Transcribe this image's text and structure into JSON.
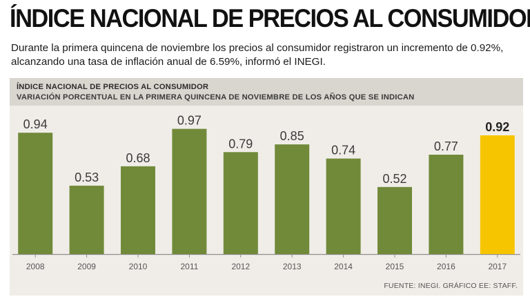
{
  "header": {
    "title": "ÍNDICE NACIONAL DE PRECIOS AL CONSUMIDOR",
    "subtitle": "Durante la primera quincena de noviembre los precios al consumidor registraron un incremento de 0.92%, alcanzando una tasa de inflación anual de 6.59%, informó el INEGI."
  },
  "panel": {
    "heading": "ÍNDICE NACIONAL DE PRECIOS AL CONSUMIDOR",
    "subheading": "VARIACIÓN PORCENTUAL EN LA PRIMERA QUINCENA DE NOVIEMBRE DE LOS AÑOS QUE SE INDICAN"
  },
  "footer": {
    "source": "FUENTE: INEGI. GRÁFICO EE: STAFF."
  },
  "colors": {
    "bar": "#718a3a",
    "highlight": "#f6c500",
    "axis": "#8f8f8f",
    "label": "#3a3a3a"
  },
  "chart_data": {
    "type": "bar",
    "title": "ÍNDICE NACIONAL DE PRECIOS AL CONSUMIDOR",
    "subtitle": "VARIACIÓN PORCENTUAL EN LA PRIMERA QUINCENA DE NOVIEMBRE DE LOS AÑOS QUE SE INDICAN",
    "categories": [
      "2008",
      "2009",
      "2010",
      "2011",
      "2012",
      "2013",
      "2014",
      "2015",
      "2016",
      "2017"
    ],
    "values": [
      0.94,
      0.53,
      0.68,
      0.97,
      0.79,
      0.85,
      0.74,
      0.52,
      0.77,
      0.92
    ],
    "labels": [
      "0.94",
      "0.53",
      "0.68",
      "0.97",
      "0.79",
      "0.85",
      "0.74",
      "0.52",
      "0.77",
      "0.92"
    ],
    "highlight": "2017",
    "xlabel": "",
    "ylabel": "",
    "ylim": [
      0,
      1.0
    ],
    "grid": false
  }
}
